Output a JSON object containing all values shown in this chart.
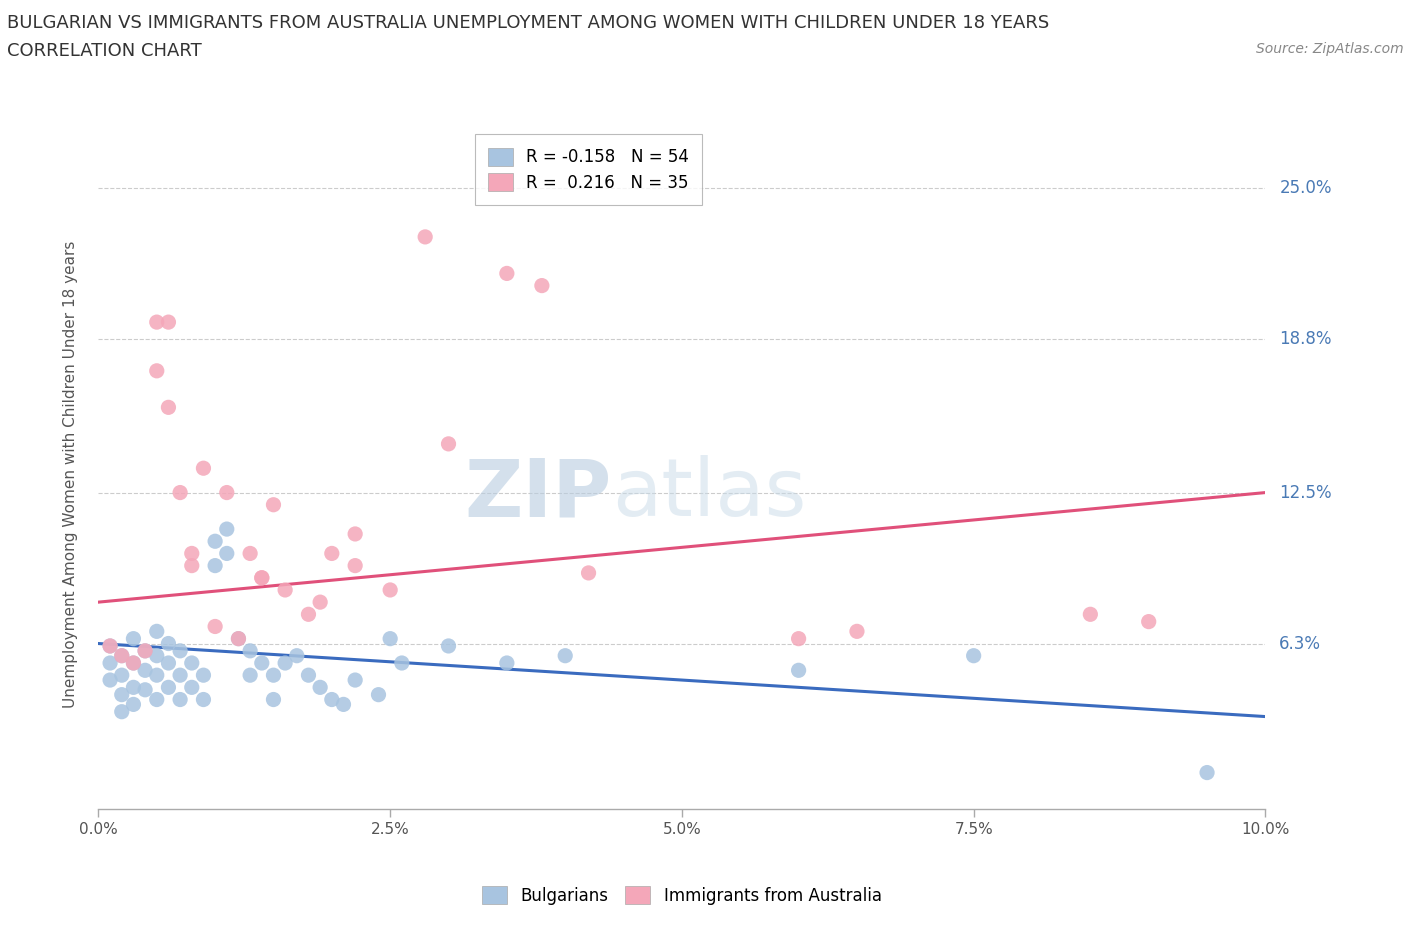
{
  "title_line1": "BULGARIAN VS IMMIGRANTS FROM AUSTRALIA UNEMPLOYMENT AMONG WOMEN WITH CHILDREN UNDER 18 YEARS",
  "title_line2": "CORRELATION CHART",
  "source_text": "Source: ZipAtlas.com",
  "ylabel": "Unemployment Among Women with Children Under 18 years",
  "xlim": [
    0.0,
    0.1
  ],
  "ylim": [
    -0.005,
    0.27
  ],
  "xtick_labels": [
    "0.0%",
    "",
    "2.5%",
    "",
    "5.0%",
    "",
    "7.5%",
    "",
    "10.0%"
  ],
  "xtick_values": [
    0.0,
    0.0125,
    0.025,
    0.0375,
    0.05,
    0.0625,
    0.075,
    0.0875,
    0.1
  ],
  "xtick_display_labels": [
    "0.0%",
    "2.5%",
    "5.0%",
    "7.5%",
    "10.0%"
  ],
  "xtick_display_values": [
    0.0,
    0.025,
    0.05,
    0.075,
    0.1
  ],
  "ytick_labels": [
    "6.3%",
    "12.5%",
    "18.8%",
    "25.0%"
  ],
  "ytick_values": [
    0.063,
    0.125,
    0.188,
    0.25
  ],
  "bulgarian_color": "#a8c4e0",
  "australian_color": "#f4a7b9",
  "bulgarian_line_color": "#3a6bbf",
  "australian_line_color": "#e0507a",
  "bulgarian_R": -0.158,
  "bulgarian_N": 54,
  "australian_R": 0.216,
  "australian_N": 35,
  "legend_label_bulgarian": "Bulgarians",
  "legend_label_australian": "Immigrants from Australia",
  "watermark_color": "#dce6f0",
  "bg_color": "#ffffff",
  "grid_color": "#cccccc",
  "right_label_color": "#4a7ab5",
  "title_color": "#333333",
  "bulgarian_scatter_x": [
    0.001,
    0.001,
    0.001,
    0.002,
    0.002,
    0.002,
    0.002,
    0.003,
    0.003,
    0.003,
    0.003,
    0.004,
    0.004,
    0.004,
    0.005,
    0.005,
    0.005,
    0.005,
    0.006,
    0.006,
    0.006,
    0.007,
    0.007,
    0.007,
    0.008,
    0.008,
    0.009,
    0.009,
    0.01,
    0.01,
    0.011,
    0.011,
    0.012,
    0.013,
    0.013,
    0.014,
    0.015,
    0.015,
    0.016,
    0.017,
    0.018,
    0.019,
    0.02,
    0.021,
    0.022,
    0.024,
    0.025,
    0.026,
    0.03,
    0.035,
    0.04,
    0.06,
    0.075,
    0.095
  ],
  "bulgarian_scatter_y": [
    0.062,
    0.055,
    0.048,
    0.058,
    0.05,
    0.042,
    0.035,
    0.065,
    0.055,
    0.045,
    0.038,
    0.06,
    0.052,
    0.044,
    0.068,
    0.058,
    0.05,
    0.04,
    0.063,
    0.055,
    0.045,
    0.06,
    0.05,
    0.04,
    0.055,
    0.045,
    0.05,
    0.04,
    0.095,
    0.105,
    0.11,
    0.1,
    0.065,
    0.06,
    0.05,
    0.055,
    0.05,
    0.04,
    0.055,
    0.058,
    0.05,
    0.045,
    0.04,
    0.038,
    0.048,
    0.042,
    0.065,
    0.055,
    0.062,
    0.055,
    0.058,
    0.052,
    0.058,
    0.01
  ],
  "australian_scatter_x": [
    0.001,
    0.002,
    0.003,
    0.004,
    0.005,
    0.005,
    0.006,
    0.006,
    0.007,
    0.008,
    0.008,
    0.009,
    0.01,
    0.011,
    0.012,
    0.013,
    0.014,
    0.014,
    0.015,
    0.016,
    0.018,
    0.019,
    0.02,
    0.022,
    0.022,
    0.025,
    0.028,
    0.03,
    0.035,
    0.038,
    0.042,
    0.06,
    0.065,
    0.085,
    0.09
  ],
  "australian_scatter_y": [
    0.062,
    0.058,
    0.055,
    0.06,
    0.175,
    0.195,
    0.195,
    0.16,
    0.125,
    0.1,
    0.095,
    0.135,
    0.07,
    0.125,
    0.065,
    0.1,
    0.09,
    0.09,
    0.12,
    0.085,
    0.075,
    0.08,
    0.1,
    0.095,
    0.108,
    0.085,
    0.23,
    0.145,
    0.215,
    0.21,
    0.092,
    0.065,
    0.068,
    0.075,
    0.072
  ],
  "bulg_line_x0": 0.0,
  "bulg_line_y0": 0.063,
  "bulg_line_x1": 0.1,
  "bulg_line_y1": 0.033,
  "aust_line_x0": 0.0,
  "aust_line_y0": 0.08,
  "aust_line_x1": 0.1,
  "aust_line_y1": 0.125
}
